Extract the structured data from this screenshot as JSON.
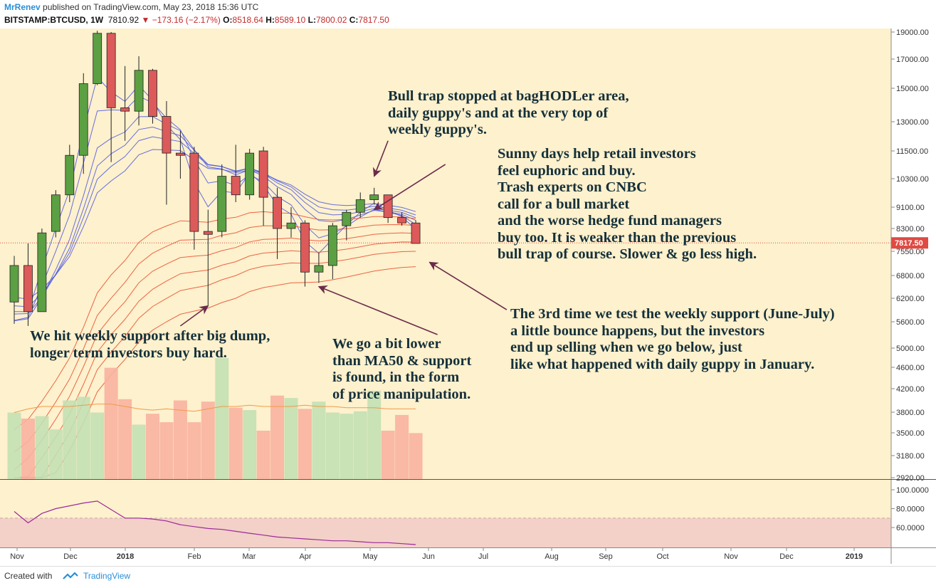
{
  "header": {
    "author": "MrRenev",
    "published": "published on TradingView.com, May 23, 2018 15:36 UTC",
    "symbol": "BITSTAMP:BTCUSD, 1W",
    "last": "7810.92",
    "change": "−173.16 (−2.17%)",
    "o_label": "O:",
    "o_value": "8518.64",
    "h_label": "H:",
    "h_value": "8589.10",
    "l_label": "L:",
    "l_value": "7800.02",
    "c_label": "C:",
    "c_value": "7817.50"
  },
  "footer": {
    "created": "Created with",
    "brand": "TradingView"
  },
  "colors": {
    "background": "#fef1cd",
    "up": "#5ba043",
    "down": "#dd5a5a",
    "ribbon_fast": "#4a57e0",
    "ribbon_slow": "#e84b2e",
    "vol_up": "#c3e0b4",
    "vol_down": "#f8b3a0",
    "osc": "#9b2a9b",
    "osc_band": "#f3d0c8",
    "price_label": "#e04a42"
  },
  "annotations": [
    {
      "id": "bull-trap",
      "lines": [
        "Bull trap stopped at bagHODLer area,",
        "daily guppy's and at the very top of",
        "weekly guppy's."
      ]
    },
    {
      "id": "sunny-days",
      "lines": [
        "Sunny days help retail investors",
        "feel euphoric and buy.",
        "Trash experts on CNBC",
        "call for a bull market",
        "and the worse hedge fund managers",
        "buy too. It is weaker than the previous",
        "bull trap of course. Slower & go less high."
      ]
    },
    {
      "id": "third-test",
      "lines": [
        "The 3rd time we test the weekly support (June-July)",
        "a little bounce happens, but the investors",
        "end up selling when we go below, just",
        "like what happened with daily guppy in January."
      ]
    },
    {
      "id": "weekly-support",
      "lines": [
        "We hit weekly support after big dump,",
        "longer term investors buy hard."
      ]
    },
    {
      "id": "ma50",
      "lines": [
        "We go a bit lower",
        "than MA50 & support",
        "is found, in the form",
        "of price manipulation."
      ]
    }
  ],
  "chart_data": {
    "type": "candlestick",
    "price_axis_ticks": [
      2920,
      3180,
      3500,
      3800,
      4200,
      4600,
      5000,
      5600,
      6200,
      6800,
      7550,
      8300,
      9100,
      10300,
      11500,
      13000,
      15000,
      17000,
      19000
    ],
    "price_axis_labels": [
      "2920.00",
      "3180.00",
      "3500.00",
      "3800.00",
      "4200.00",
      "4600.00",
      "5000.00",
      "5600.00",
      "6200.00",
      "6800.00",
      "7550.00",
      "8300.00",
      "9100.00",
      "10300.00",
      "11500.00",
      "13000.00",
      "15000.00",
      "17000.00",
      "19000.00"
    ],
    "last_price_label": "7817.50",
    "time_labels": [
      "Nov",
      "Dec",
      "2018",
      "Feb",
      "Mar",
      "Apr",
      "May",
      "Jun",
      "Jul",
      "Aug",
      "Sep",
      "Oct",
      "Nov",
      "Dec",
      "2019"
    ],
    "candles": [
      {
        "date": "2017-10-30",
        "o": 6100,
        "h": 7400,
        "l": 5550,
        "c": 7100
      },
      {
        "date": "2017-11-06",
        "o": 7100,
        "h": 7800,
        "l": 5500,
        "c": 5850
      },
      {
        "date": "2017-11-13",
        "o": 5850,
        "h": 8300,
        "l": 5850,
        "c": 8150
      },
      {
        "date": "2017-11-20",
        "o": 8200,
        "h": 9800,
        "l": 8000,
        "c": 9600
      },
      {
        "date": "2017-11-27",
        "o": 9600,
        "h": 11800,
        "l": 9300,
        "c": 11300
      },
      {
        "date": "2017-12-04",
        "o": 11300,
        "h": 16000,
        "l": 10500,
        "c": 15300
      },
      {
        "date": "2017-12-11",
        "o": 15300,
        "h": 19100,
        "l": 15200,
        "c": 18900
      },
      {
        "date": "2017-12-18",
        "o": 18900,
        "h": 19000,
        "l": 11000,
        "c": 13800
      },
      {
        "date": "2017-12-25",
        "o": 13800,
        "h": 16500,
        "l": 12000,
        "c": 13600
      },
      {
        "date": "2018-01-01",
        "o": 13600,
        "h": 17200,
        "l": 12800,
        "c": 16200
      },
      {
        "date": "2018-01-08",
        "o": 16200,
        "h": 16300,
        "l": 12900,
        "c": 13300
      },
      {
        "date": "2018-01-15",
        "o": 13300,
        "h": 14200,
        "l": 9200,
        "c": 11400
      },
      {
        "date": "2018-01-22",
        "o": 11400,
        "h": 12500,
        "l": 10300,
        "c": 11300
      },
      {
        "date": "2018-01-29",
        "o": 11400,
        "h": 11700,
        "l": 7600,
        "c": 8200
      },
      {
        "date": "2018-02-05",
        "o": 8200,
        "h": 9000,
        "l": 6000,
        "c": 8100
      },
      {
        "date": "2018-02-12",
        "o": 8200,
        "h": 10900,
        "l": 8000,
        "c": 10400
      },
      {
        "date": "2018-02-19",
        "o": 10400,
        "h": 11800,
        "l": 9300,
        "c": 9600
      },
      {
        "date": "2018-02-26",
        "o": 9600,
        "h": 11600,
        "l": 9400,
        "c": 11400
      },
      {
        "date": "2018-03-05",
        "o": 11500,
        "h": 11700,
        "l": 8400,
        "c": 9500
      },
      {
        "date": "2018-03-12",
        "o": 9500,
        "h": 9900,
        "l": 7300,
        "c": 8300
      },
      {
        "date": "2018-03-19",
        "o": 8300,
        "h": 9100,
        "l": 8000,
        "c": 8500
      },
      {
        "date": "2018-03-26",
        "o": 8500,
        "h": 8600,
        "l": 6500,
        "c": 6900
      },
      {
        "date": "2018-04-02",
        "o": 6900,
        "h": 7500,
        "l": 6600,
        "c": 7100
      },
      {
        "date": "2018-04-09",
        "o": 7100,
        "h": 8500,
        "l": 6700,
        "c": 8400
      },
      {
        "date": "2018-04-16",
        "o": 8400,
        "h": 9000,
        "l": 7900,
        "c": 8900
      },
      {
        "date": "2018-04-23",
        "o": 8900,
        "h": 9700,
        "l": 8700,
        "c": 9400
      },
      {
        "date": "2018-04-30",
        "o": 9400,
        "h": 9900,
        "l": 9200,
        "c": 9600
      },
      {
        "date": "2018-05-07",
        "o": 9600,
        "h": 9600,
        "l": 8500,
        "c": 8700
      },
      {
        "date": "2018-05-14",
        "o": 8700,
        "h": 8900,
        "l": 8400,
        "c": 8500
      },
      {
        "date": "2018-05-21",
        "o": 8500,
        "h": 8600,
        "l": 7800,
        "c": 7800
      }
    ],
    "volume": [
      0.55,
      0.5,
      0.52,
      0.41,
      0.65,
      0.68,
      0.55,
      0.92,
      0.66,
      0.45,
      0.54,
      0.47,
      0.65,
      0.47,
      0.64,
      1.0,
      0.59,
      0.57,
      0.4,
      0.69,
      0.67,
      0.58,
      0.64,
      0.55,
      0.54,
      0.56,
      0.73,
      0.4,
      0.53,
      0.38
    ],
    "volume_ma": [
      0.55,
      0.58,
      0.6,
      0.6,
      0.6,
      0.61,
      0.62,
      0.62,
      0.6,
      0.58,
      0.57,
      0.58,
      0.57,
      0.56,
      0.58,
      0.6,
      0.6,
      0.61,
      0.6,
      0.6,
      0.6,
      0.61,
      0.6,
      0.6,
      0.59,
      0.59,
      0.59,
      0.58,
      0.58,
      0.58
    ],
    "oscillator_ticks": [
      60,
      80,
      100
    ],
    "oscillator_labels": [
      "60.0000",
      "80.0000",
      "100.0000"
    ],
    "oscillator_band": [
      0,
      70
    ],
    "oscillator": [
      77,
      65,
      75,
      80,
      83,
      86,
      88,
      79,
      70,
      70,
      69,
      67,
      63,
      61,
      59,
      58,
      56,
      54,
      52,
      50,
      49,
      48,
      47,
      46,
      46,
      45,
      44,
      44,
      43,
      42
    ],
    "annotation_arrows": [
      {
        "from_date": "2018-01-22",
        "from_price": 5500,
        "to_date": "2018-02-05",
        "to_price": 6000
      },
      {
        "from_date": "2018-05-07",
        "from_price": 12000,
        "to_date": "2018-04-30",
        "to_price": 10400
      },
      {
        "from_date": "2018-06-05",
        "from_price": 10900,
        "to_date": "2018-04-30",
        "to_price": 9000
      },
      {
        "from_date": "2018-06-01",
        "from_price": 5300,
        "to_date": "2018-04-02",
        "to_price": 6500
      },
      {
        "from_date": "2018-07-06",
        "from_price": 5900,
        "to_date": "2018-05-28",
        "to_price": 7200
      }
    ]
  }
}
